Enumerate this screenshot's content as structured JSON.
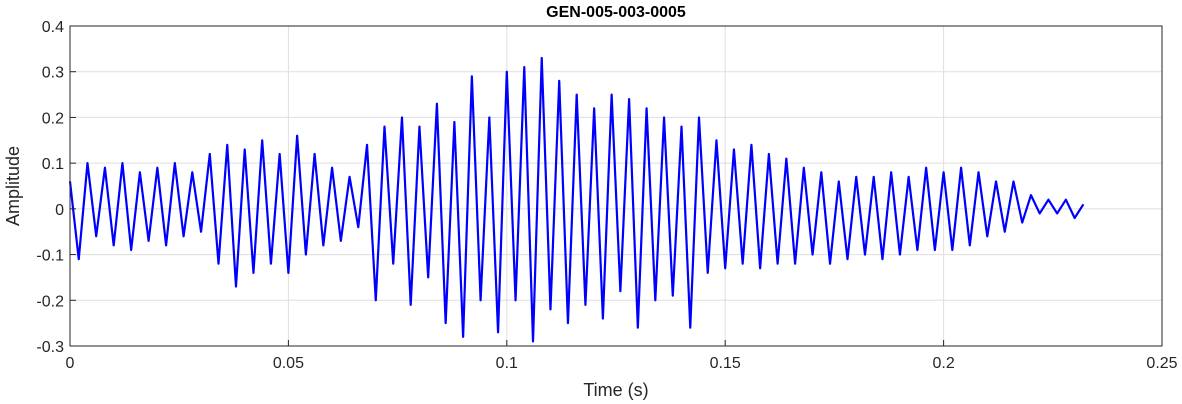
{
  "chart_data": {
    "type": "line",
    "title": "GEN-005-003-0005",
    "xlabel": "Time (s)",
    "ylabel": "Amplitude",
    "xlim": [
      0,
      0.25
    ],
    "ylim": [
      -0.3,
      0.4
    ],
    "xticks": [
      "0",
      "0.05",
      "0.1",
      "0.15",
      "0.2",
      "0.25"
    ],
    "yticks": [
      "-0.3",
      "-0.2",
      "-0.1",
      "0",
      "0.1",
      "0.2",
      "0.3",
      "0.4"
    ],
    "grid": true,
    "series": [
      {
        "color": "#0000ff",
        "x": [
          0.0,
          0.002,
          0.004,
          0.006,
          0.008,
          0.01,
          0.012,
          0.014,
          0.016,
          0.018,
          0.02,
          0.022,
          0.024,
          0.026,
          0.028,
          0.03,
          0.032,
          0.034,
          0.036,
          0.038,
          0.04,
          0.042,
          0.044,
          0.046,
          0.048,
          0.05,
          0.052,
          0.054,
          0.056,
          0.058,
          0.06,
          0.062,
          0.064,
          0.066,
          0.068,
          0.07,
          0.072,
          0.074,
          0.076,
          0.078,
          0.08,
          0.082,
          0.084,
          0.086,
          0.088,
          0.09,
          0.092,
          0.094,
          0.096,
          0.098,
          0.1,
          0.102,
          0.104,
          0.106,
          0.108,
          0.11,
          0.112,
          0.114,
          0.116,
          0.118,
          0.12,
          0.122,
          0.124,
          0.126,
          0.128,
          0.13,
          0.132,
          0.134,
          0.136,
          0.138,
          0.14,
          0.142,
          0.144,
          0.146,
          0.148,
          0.15,
          0.152,
          0.154,
          0.156,
          0.158,
          0.16,
          0.162,
          0.164,
          0.166,
          0.168,
          0.17,
          0.172,
          0.174,
          0.176,
          0.178,
          0.18,
          0.182,
          0.184,
          0.186,
          0.188,
          0.19,
          0.192,
          0.194,
          0.196,
          0.198,
          0.2,
          0.202,
          0.204,
          0.206,
          0.208,
          0.21,
          0.212,
          0.214,
          0.216,
          0.218,
          0.22,
          0.222,
          0.224,
          0.226,
          0.228,
          0.23,
          0.232
        ],
        "y": [
          0.06,
          -0.11,
          0.1,
          -0.06,
          0.09,
          -0.08,
          0.1,
          -0.09,
          0.08,
          -0.07,
          0.09,
          -0.08,
          0.1,
          -0.06,
          0.08,
          -0.05,
          0.12,
          -0.12,
          0.14,
          -0.17,
          0.13,
          -0.14,
          0.15,
          -0.12,
          0.12,
          -0.14,
          0.16,
          -0.1,
          0.12,
          -0.08,
          0.09,
          -0.07,
          0.07,
          -0.04,
          0.14,
          -0.2,
          0.18,
          -0.12,
          0.2,
          -0.21,
          0.18,
          -0.15,
          0.23,
          -0.25,
          0.19,
          -0.28,
          0.29,
          -0.2,
          0.2,
          -0.27,
          0.3,
          -0.2,
          0.31,
          -0.29,
          0.33,
          -0.22,
          0.28,
          -0.25,
          0.25,
          -0.21,
          0.22,
          -0.24,
          0.25,
          -0.18,
          0.24,
          -0.26,
          0.22,
          -0.2,
          0.2,
          -0.19,
          0.18,
          -0.26,
          0.2,
          -0.14,
          0.15,
          -0.13,
          0.13,
          -0.12,
          0.14,
          -0.13,
          0.12,
          -0.12,
          0.11,
          -0.12,
          0.09,
          -0.1,
          0.08,
          -0.12,
          0.06,
          -0.11,
          0.07,
          -0.1,
          0.07,
          -0.11,
          0.08,
          -0.1,
          0.07,
          -0.09,
          0.09,
          -0.09,
          0.08,
          -0.09,
          0.09,
          -0.08,
          0.08,
          -0.06,
          0.06,
          -0.05,
          0.06,
          -0.03,
          0.03,
          -0.01,
          0.02,
          -0.01,
          0.02,
          -0.02,
          0.01
        ]
      }
    ]
  }
}
